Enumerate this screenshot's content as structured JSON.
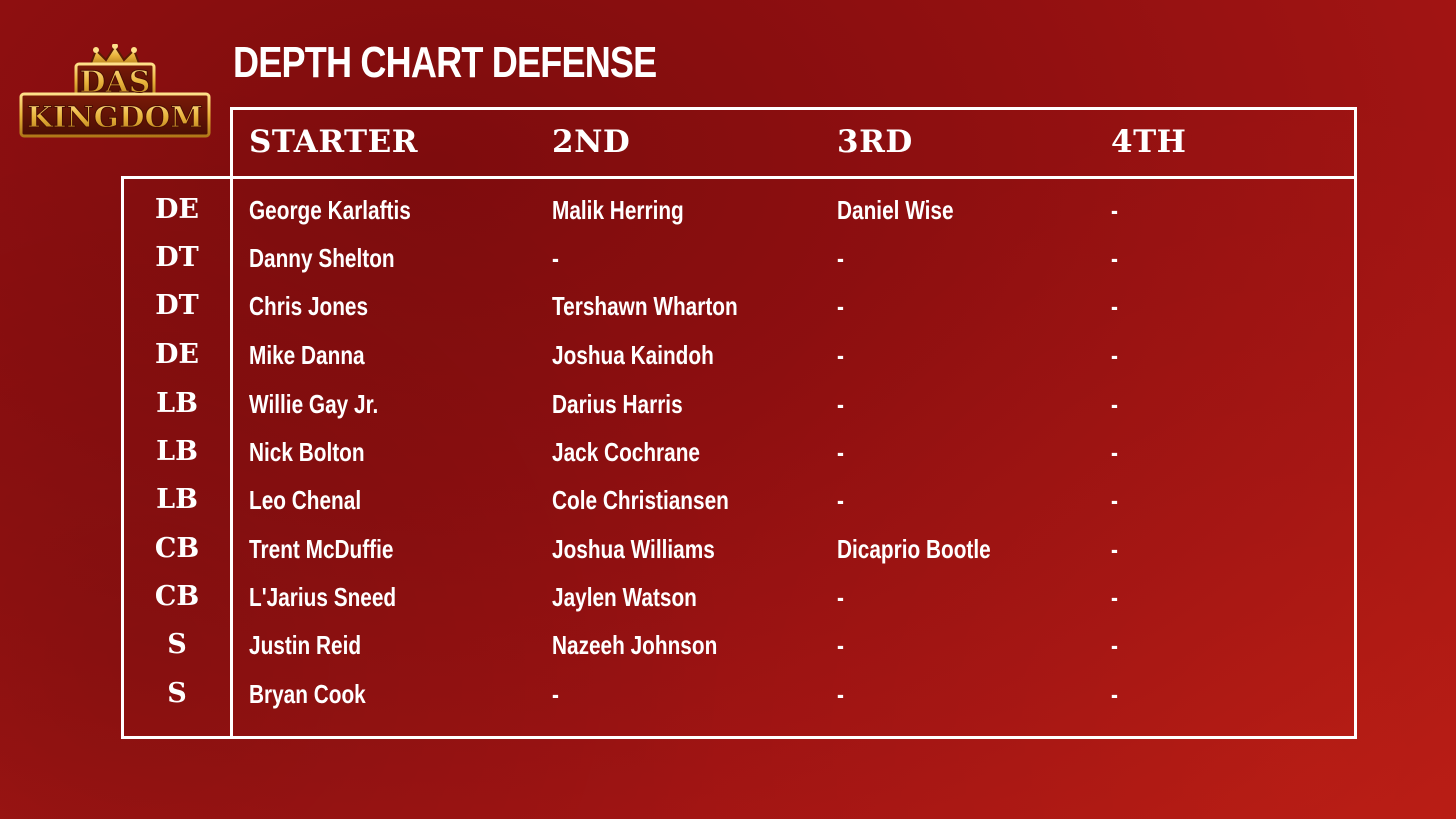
{
  "title": "DEPTH CHART DEFENSE",
  "logo": {
    "line1": "DAS",
    "line2": "KINGDOM",
    "gold": "#e8b23a",
    "dark": "#6a1a08"
  },
  "headers": [
    "STARTER",
    "2ND",
    "3RD",
    "4TH"
  ],
  "rows": [
    {
      "pos": "DE",
      "starter": "George Karlaftis",
      "second": "Malik Herring",
      "third": "Daniel Wise",
      "fourth": "-"
    },
    {
      "pos": "DT",
      "starter": "Danny Shelton",
      "second": "-",
      "third": "-",
      "fourth": "-"
    },
    {
      "pos": "DT",
      "starter": "Chris Jones",
      "second": "Tershawn Wharton",
      "third": "-",
      "fourth": "-"
    },
    {
      "pos": "DE",
      "starter": "Mike Danna",
      "second": "Joshua Kaindoh",
      "third": "-",
      "fourth": "-"
    },
    {
      "pos": "LB",
      "starter": "Willie Gay Jr.",
      "second": "Darius Harris",
      "third": "-",
      "fourth": "-"
    },
    {
      "pos": "LB",
      "starter": "Nick Bolton",
      "second": "Jack Cochrane",
      "third": "-",
      "fourth": "-"
    },
    {
      "pos": "LB",
      "starter": "Leo Chenal",
      "second": "Cole Christiansen",
      "third": "-",
      "fourth": "-"
    },
    {
      "pos": "CB",
      "starter": "Trent McDuffie",
      "second": "Joshua Williams",
      "third": "Dicaprio Bootle",
      "fourth": "-"
    },
    {
      "pos": "CB",
      "starter": "L'Jarius Sneed",
      "second": "Jaylen Watson",
      "third": "-",
      "fourth": "-"
    },
    {
      "pos": "S",
      "starter": "Justin Reid",
      "second": "Nazeeh Johnson",
      "third": "-",
      "fourth": "-"
    },
    {
      "pos": "S",
      "starter": "Bryan Cook",
      "second": "-",
      "third": "-",
      "fourth": "-"
    }
  ]
}
